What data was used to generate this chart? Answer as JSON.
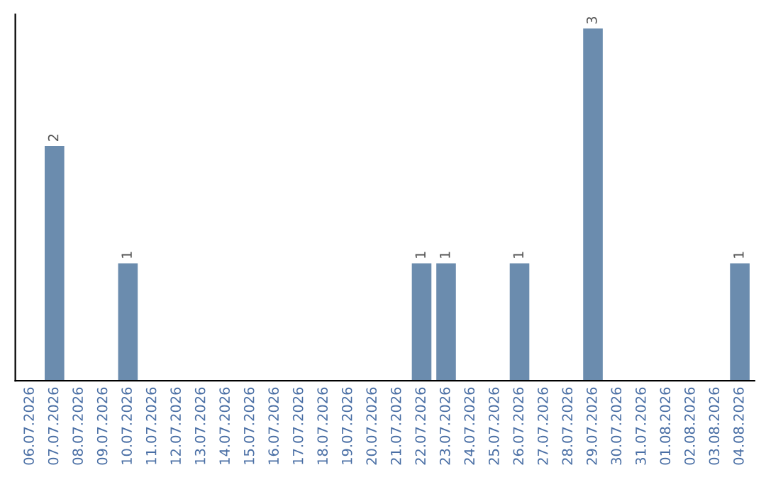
{
  "chart_data": {
    "type": "bar",
    "categories": [
      "06.07.2026",
      "07.07.2026",
      "08.07.2026",
      "09.07.2026",
      "10.07.2026",
      "11.07.2026",
      "12.07.2026",
      "13.07.2026",
      "14.07.2026",
      "15.07.2026",
      "16.07.2026",
      "17.07.2026",
      "18.07.2026",
      "19.07.2026",
      "20.07.2026",
      "21.07.2026",
      "22.07.2026",
      "23.07.2026",
      "24.07.2026",
      "25.07.2026",
      "26.07.2026",
      "27.07.2026",
      "28.07.2026",
      "29.07.2026",
      "30.07.2026",
      "31.07.2026",
      "01.08.2026",
      "02.08.2026",
      "03.08.2026",
      "04.08.2026"
    ],
    "values": [
      0,
      2,
      0,
      0,
      1,
      0,
      0,
      0,
      0,
      0,
      0,
      0,
      0,
      0,
      0,
      0,
      1,
      1,
      0,
      0,
      1,
      0,
      0,
      3,
      0,
      0,
      0,
      0,
      0,
      1
    ],
    "value_labels": [
      null,
      "2",
      null,
      null,
      "1",
      null,
      null,
      null,
      null,
      null,
      null,
      null,
      null,
      null,
      null,
      null,
      "1",
      "1",
      null,
      null,
      "1",
      null,
      null,
      "3",
      null,
      null,
      null,
      null,
      null,
      "1"
    ],
    "color": "#6b8cae",
    "grid": false,
    "legend": false
  }
}
